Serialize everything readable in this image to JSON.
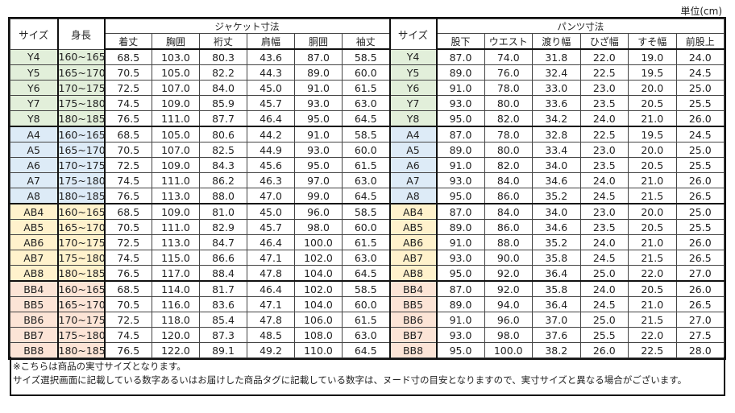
{
  "unit_label": "単位(cm)",
  "headers": {
    "size": "サイズ",
    "height": "身長",
    "jacket_group": "ジャケット寸法",
    "pants_group": "パンツ寸法",
    "jacket_cols": [
      "着丈",
      "胸囲",
      "裄丈",
      "肩幅",
      "胴囲",
      "袖丈"
    ],
    "pants_cols": [
      "股下",
      "ウエスト",
      "渡り幅",
      "ひざ幅",
      "すそ幅",
      "前股上"
    ]
  },
  "group_colors": {
    "Y": "#e2efda",
    "A": "#ddebf7",
    "AB": "#fff2cc",
    "BB": "#fce4d6"
  },
  "rows": [
    {
      "group": "Y",
      "size": "Y4",
      "height": "160~165",
      "jacket": [
        "68.5",
        "103.0",
        "80.3",
        "43.6",
        "87.0",
        "58.5"
      ],
      "pants": [
        "87.0",
        "74.0",
        "31.8",
        "22.0",
        "19.0",
        "24.0"
      ]
    },
    {
      "group": "Y",
      "size": "Y5",
      "height": "165~170",
      "jacket": [
        "70.5",
        "105.0",
        "82.2",
        "44.3",
        "89.0",
        "60.0"
      ],
      "pants": [
        "89.0",
        "76.0",
        "32.4",
        "22.5",
        "19.5",
        "24.5"
      ]
    },
    {
      "group": "Y",
      "size": "Y6",
      "height": "170~175",
      "jacket": [
        "72.5",
        "107.0",
        "84.0",
        "45.0",
        "91.0",
        "61.5"
      ],
      "pants": [
        "91.0",
        "78.0",
        "33.0",
        "23.0",
        "20.0",
        "25.0"
      ]
    },
    {
      "group": "Y",
      "size": "Y7",
      "height": "175~180",
      "jacket": [
        "74.5",
        "109.0",
        "85.9",
        "45.7",
        "93.0",
        "63.0"
      ],
      "pants": [
        "93.0",
        "80.0",
        "33.6",
        "23.5",
        "20.5",
        "25.5"
      ]
    },
    {
      "group": "Y",
      "size": "Y8",
      "height": "180~185",
      "jacket": [
        "76.5",
        "111.0",
        "87.7",
        "46.4",
        "95.0",
        "64.5"
      ],
      "pants": [
        "95.0",
        "82.0",
        "34.2",
        "24.0",
        "21.0",
        "26.0"
      ]
    },
    {
      "group": "A",
      "size": "A4",
      "height": "160~165",
      "jacket": [
        "68.5",
        "105.0",
        "80.6",
        "44.2",
        "91.0",
        "58.5"
      ],
      "pants": [
        "87.0",
        "78.0",
        "32.8",
        "22.5",
        "19.5",
        "24.5"
      ]
    },
    {
      "group": "A",
      "size": "A5",
      "height": "165~170",
      "jacket": [
        "70.5",
        "107.0",
        "82.5",
        "44.9",
        "93.0",
        "60.0"
      ],
      "pants": [
        "89.0",
        "80.0",
        "33.4",
        "23.0",
        "20.0",
        "25.0"
      ]
    },
    {
      "group": "A",
      "size": "A6",
      "height": "170~175",
      "jacket": [
        "72.5",
        "109.0",
        "84.3",
        "45.6",
        "95.0",
        "61.5"
      ],
      "pants": [
        "91.0",
        "82.0",
        "34.0",
        "23.5",
        "20.5",
        "25.5"
      ]
    },
    {
      "group": "A",
      "size": "A7",
      "height": "175~180",
      "jacket": [
        "74.5",
        "111.0",
        "86.2",
        "46.3",
        "97.0",
        "63.0"
      ],
      "pants": [
        "93.0",
        "84.0",
        "34.6",
        "24.0",
        "21.0",
        "26.0"
      ]
    },
    {
      "group": "A",
      "size": "A8",
      "height": "180~185",
      "jacket": [
        "76.5",
        "113.0",
        "88.0",
        "47.0",
        "99.0",
        "64.5"
      ],
      "pants": [
        "95.0",
        "86.0",
        "35.2",
        "24.5",
        "21.5",
        "26.5"
      ]
    },
    {
      "group": "AB",
      "size": "AB4",
      "height": "160~165",
      "jacket": [
        "68.5",
        "109.0",
        "81.0",
        "45.0",
        "96.0",
        "58.5"
      ],
      "pants": [
        "87.0",
        "84.0",
        "34.0",
        "23.0",
        "20.0",
        "25.0"
      ]
    },
    {
      "group": "AB",
      "size": "AB5",
      "height": "165~170",
      "jacket": [
        "70.5",
        "111.0",
        "82.9",
        "45.7",
        "98.0",
        "60.0"
      ],
      "pants": [
        "89.0",
        "86.0",
        "34.6",
        "23.5",
        "20.5",
        "25.5"
      ]
    },
    {
      "group": "AB",
      "size": "AB6",
      "height": "170~175",
      "jacket": [
        "72.5",
        "113.0",
        "84.7",
        "46.4",
        "100.0",
        "61.5"
      ],
      "pants": [
        "91.0",
        "88.0",
        "35.2",
        "24.0",
        "21.0",
        "26.0"
      ]
    },
    {
      "group": "AB",
      "size": "AB7",
      "height": "175~180",
      "jacket": [
        "74.5",
        "115.0",
        "86.6",
        "47.1",
        "102.0",
        "63.0"
      ],
      "pants": [
        "93.0",
        "90.0",
        "35.8",
        "24.5",
        "21.5",
        "26.5"
      ]
    },
    {
      "group": "AB",
      "size": "AB8",
      "height": "180~185",
      "jacket": [
        "76.5",
        "117.0",
        "88.4",
        "47.8",
        "104.0",
        "64.5"
      ],
      "pants": [
        "95.0",
        "92.0",
        "36.4",
        "25.0",
        "22.0",
        "27.0"
      ]
    },
    {
      "group": "BB",
      "size": "BB4",
      "height": "160~165",
      "jacket": [
        "68.5",
        "114.0",
        "81.7",
        "46.4",
        "102.0",
        "58.5"
      ],
      "pants": [
        "87.0",
        "92.0",
        "35.8",
        "24.0",
        "20.5",
        "26.0"
      ]
    },
    {
      "group": "BB",
      "size": "BB5",
      "height": "165~170",
      "jacket": [
        "70.5",
        "116.0",
        "83.6",
        "47.1",
        "104.0",
        "60.0"
      ],
      "pants": [
        "89.0",
        "94.0",
        "36.4",
        "24.5",
        "21.0",
        "26.5"
      ]
    },
    {
      "group": "BB",
      "size": "BB6",
      "height": "170~175",
      "jacket": [
        "72.5",
        "118.0",
        "85.4",
        "47.8",
        "106.0",
        "61.5"
      ],
      "pants": [
        "91.0",
        "96.0",
        "37.0",
        "25.0",
        "21.5",
        "27.0"
      ]
    },
    {
      "group": "BB",
      "size": "BB7",
      "height": "175~180",
      "jacket": [
        "74.5",
        "120.0",
        "87.3",
        "48.5",
        "108.0",
        "63.0"
      ],
      "pants": [
        "93.0",
        "98.0",
        "37.6",
        "25.5",
        "22.0",
        "27.5"
      ]
    },
    {
      "group": "BB",
      "size": "BB8",
      "height": "180~185",
      "jacket": [
        "76.5",
        "122.0",
        "89.1",
        "49.2",
        "110.0",
        "64.5"
      ],
      "pants": [
        "95.0",
        "100.0",
        "38.2",
        "26.0",
        "22.5",
        "28.0"
      ]
    }
  ],
  "footer": {
    "line1": "※こちらは商品の実寸サイズとなります。",
    "line2": "サイズ選択画面に記載している数字あるいはお届けした商品タグに記載している数字は、ヌード寸の目安となりますので、実寸サイズと異なる場合がございます。"
  }
}
